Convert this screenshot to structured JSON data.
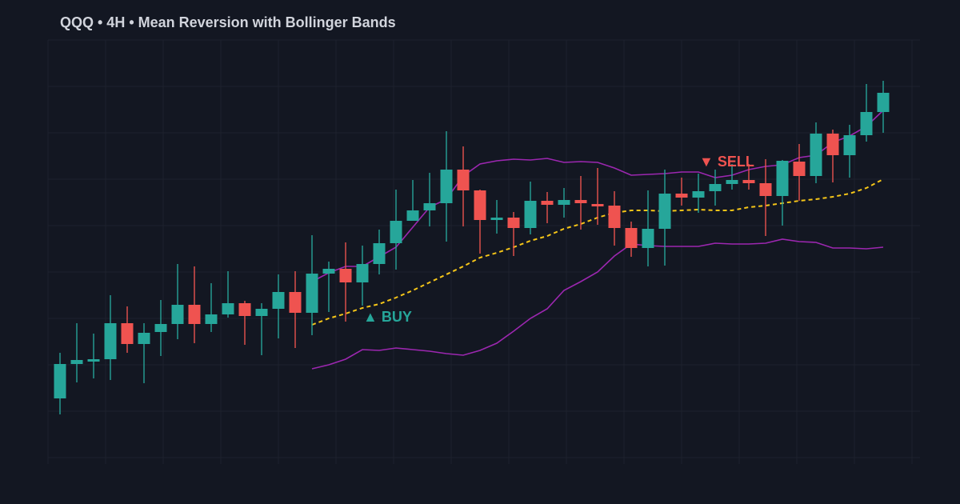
{
  "chart_data": {
    "type": "candlestick",
    "title": "QQQ • 4H • Mean Reversion with Bollinger Bands",
    "xlabel": "",
    "ylabel": "",
    "grid": true,
    "legend": null,
    "price_mapping_note": "y_pixel = 600 - 2*price (no axis labels visible)",
    "candles": [
      {
        "o": 51.0,
        "h": 79.5,
        "l": 41.0,
        "c": 72.5
      },
      {
        "o": 72.5,
        "h": 98.0,
        "l": 61.0,
        "c": 75.0
      },
      {
        "o": 74.0,
        "h": 91.5,
        "l": 63.5,
        "c": 75.5
      },
      {
        "o": 75.5,
        "h": 115.5,
        "l": 62.5,
        "c": 98.0
      },
      {
        "o": 98.0,
        "h": 108.5,
        "l": 79.5,
        "c": 85.0
      },
      {
        "o": 85.0,
        "h": 98.0,
        "l": 60.5,
        "c": 92.0
      },
      {
        "o": 92.5,
        "h": 112.5,
        "l": 77.5,
        "c": 97.5
      },
      {
        "o": 97.5,
        "h": 135.0,
        "l": 88.0,
        "c": 109.5
      },
      {
        "o": 109.5,
        "h": 133.5,
        "l": 85.5,
        "c": 97.5
      },
      {
        "o": 97.5,
        "h": 123.0,
        "l": 92.5,
        "c": 103.5
      },
      {
        "o": 103.5,
        "h": 130.5,
        "l": 101.5,
        "c": 110.5
      },
      {
        "o": 110.5,
        "h": 112.0,
        "l": 84.5,
        "c": 102.5
      },
      {
        "o": 102.5,
        "h": 110.5,
        "l": 78.0,
        "c": 107.0
      },
      {
        "o": 107.0,
        "h": 128.5,
        "l": 88.5,
        "c": 117.5
      },
      {
        "o": 117.5,
        "h": 130.5,
        "l": 82.5,
        "c": 104.5
      },
      {
        "o": 104.5,
        "h": 153.0,
        "l": 90.5,
        "c": 129.0
      },
      {
        "o": 129.0,
        "h": 136.5,
        "l": 105.0,
        "c": 132.0
      },
      {
        "o": 132.0,
        "h": 148.5,
        "l": 99.0,
        "c": 123.5
      },
      {
        "o": 123.5,
        "h": 146.5,
        "l": 109.0,
        "c": 135.0
      },
      {
        "o": 135.0,
        "h": 156.5,
        "l": 128.5,
        "c": 148.0
      },
      {
        "o": 148.0,
        "h": 181.5,
        "l": 131.5,
        "c": 162.0
      },
      {
        "o": 162.0,
        "h": 187.5,
        "l": 162.0,
        "c": 168.5
      },
      {
        "o": 168.5,
        "h": 192.0,
        "l": 158.5,
        "c": 173.0
      },
      {
        "o": 173.0,
        "h": 218.0,
        "l": 149.0,
        "c": 194.0
      },
      {
        "o": 194.0,
        "h": 208.5,
        "l": 158.5,
        "c": 181.0
      },
      {
        "o": 181.0,
        "h": 181.5,
        "l": 141.5,
        "c": 162.5
      },
      {
        "o": 162.5,
        "h": 175.0,
        "l": 154.0,
        "c": 164.0
      },
      {
        "o": 164.0,
        "h": 167.5,
        "l": 140.0,
        "c": 157.5
      },
      {
        "o": 157.5,
        "h": 186.5,
        "l": 153.5,
        "c": 174.5
      },
      {
        "o": 174.5,
        "h": 180.0,
        "l": 160.5,
        "c": 172.0
      },
      {
        "o": 172.0,
        "h": 182.5,
        "l": 164.0,
        "c": 175.0
      },
      {
        "o": 175.0,
        "h": 190.0,
        "l": 156.5,
        "c": 173.0
      },
      {
        "o": 172.5,
        "h": 195.0,
        "l": 159.5,
        "c": 171.0
      },
      {
        "o": 171.5,
        "h": 180.5,
        "l": 146.5,
        "c": 157.5
      },
      {
        "o": 157.5,
        "h": 161.5,
        "l": 139.5,
        "c": 145.0
      },
      {
        "o": 145.0,
        "h": 181.0,
        "l": 133.5,
        "c": 157.0
      },
      {
        "o": 157.0,
        "h": 194.0,
        "l": 134.0,
        "c": 179.0
      },
      {
        "o": 179.0,
        "h": 189.0,
        "l": 171.5,
        "c": 176.5
      },
      {
        "o": 176.5,
        "h": 191.5,
        "l": 167.0,
        "c": 180.5
      },
      {
        "o": 180.5,
        "h": 194.0,
        "l": 171.5,
        "c": 185.0
      },
      {
        "o": 185.0,
        "h": 197.5,
        "l": 181.5,
        "c": 187.5
      },
      {
        "o": 187.5,
        "h": 197.5,
        "l": 181.5,
        "c": 185.5
      },
      {
        "o": 185.5,
        "h": 200.5,
        "l": 152.5,
        "c": 177.5
      },
      {
        "o": 177.5,
        "h": 200.0,
        "l": 159.0,
        "c": 199.5
      },
      {
        "o": 199.0,
        "h": 210.0,
        "l": 174.5,
        "c": 190.0
      },
      {
        "o": 190.0,
        "h": 223.5,
        "l": 185.5,
        "c": 216.5
      },
      {
        "o": 216.5,
        "h": 219.0,
        "l": 186.0,
        "c": 203.0
      },
      {
        "o": 203.0,
        "h": 222.0,
        "l": 189.0,
        "c": 215.5
      },
      {
        "o": 215.5,
        "h": 247.5,
        "l": 211.5,
        "c": 230.0
      },
      {
        "o": 230.0,
        "h": 249.5,
        "l": 217.0,
        "c": 242.0
      }
    ],
    "bollinger_start_index": 15,
    "series": [
      {
        "name": "Upper Band",
        "color": "#9c27b0",
        "style": "solid",
        "values": [
          124,
          129.5,
          133.5,
          133.5,
          139.5,
          145.5,
          158,
          170.5,
          175.5,
          190,
          197.5,
          199.5,
          200.5,
          200,
          201,
          198.5,
          199,
          198.5,
          195,
          190.5,
          191,
          191.5,
          192.5,
          192.5,
          189,
          190.5,
          194,
          196,
          197,
          201.5,
          203,
          211,
          215,
          221,
          231
        ]
      },
      {
        "name": "Middle Band (SMA)",
        "color": "#f5c518",
        "style": "dashed",
        "values": [
          97,
          101,
          104,
          107.5,
          110,
          114,
          118.5,
          123.5,
          128.5,
          133.5,
          139,
          142,
          145.5,
          149.5,
          152.5,
          157,
          160,
          164,
          167,
          168.5,
          168.5,
          168,
          168.5,
          169,
          168.5,
          168.5,
          170.5,
          171.5,
          173,
          174.5,
          175.5,
          177,
          179,
          182.5,
          188
        ]
      },
      {
        "name": "Lower Band",
        "color": "#9c27b0",
        "style": "solid",
        "values": [
          69.5,
          72,
          75.5,
          81.5,
          81,
          82.5,
          81.5,
          80.5,
          79,
          78,
          81,
          85.5,
          93,
          101,
          107,
          118.5,
          124,
          130,
          140,
          147.5,
          146.5,
          146,
          146,
          146,
          148,
          147.5,
          147.5,
          148,
          150.5,
          149,
          148.5,
          145,
          145,
          144.5,
          145.5
        ]
      }
    ],
    "annotations": [
      {
        "text": "▲ BUY",
        "index": 18,
        "price": 102,
        "color": "#26a69a"
      },
      {
        "text": "▼ SELL",
        "index": 38,
        "price": 199,
        "color": "#ef5350"
      }
    ],
    "colors": {
      "up": "#26a69a",
      "down": "#ef5350",
      "background": "#131722",
      "grid": "#1e222d",
      "title": "#d1d4dc"
    }
  },
  "header": {
    "title": "QQQ • 4H • Mean Reversion with Bollinger Bands"
  }
}
